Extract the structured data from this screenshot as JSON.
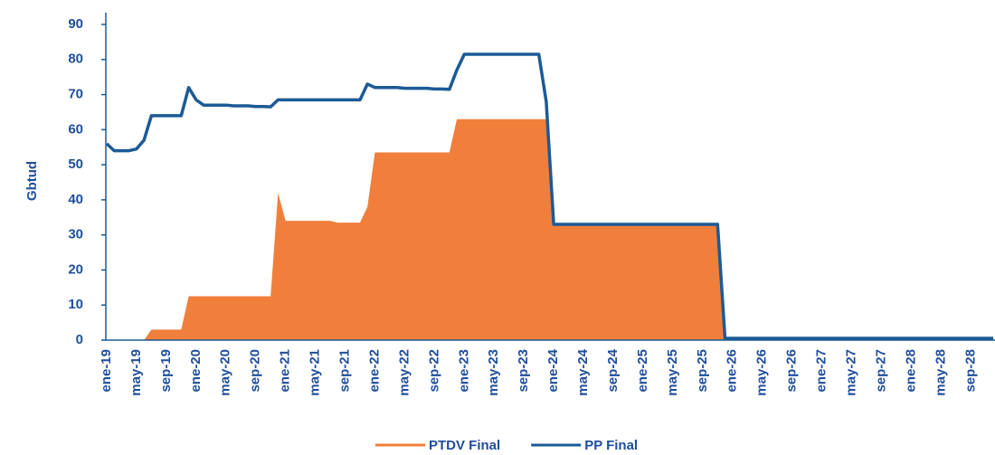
{
  "chart_data": {
    "type": "area-line",
    "y_label": "Gbtud",
    "categories": [
      "ene-19",
      null,
      null,
      null,
      "may-19",
      null,
      null,
      null,
      "sep-19",
      null,
      null,
      null,
      "ene-20",
      null,
      null,
      null,
      "may-20",
      null,
      null,
      null,
      "sep-20",
      null,
      null,
      null,
      "ene-21",
      null,
      null,
      null,
      "may-21",
      null,
      null,
      null,
      "sep-21",
      null,
      null,
      null,
      "ene-22",
      null,
      null,
      null,
      "may-22",
      null,
      null,
      null,
      "sep-22",
      null,
      null,
      null,
      "ene-23",
      null,
      null,
      null,
      "may-23",
      null,
      null,
      null,
      "sep-23",
      null,
      null,
      null,
      "ene-24",
      null,
      null,
      null,
      "may-24",
      null,
      null,
      null,
      "sep-24",
      null,
      null,
      null,
      "ene-25",
      null,
      null,
      null,
      "may-25",
      null,
      null,
      null,
      "sep-25",
      null,
      null,
      null,
      "ene-26",
      null,
      null,
      null,
      "may-26",
      null,
      null,
      null,
      "sep-26",
      null,
      null,
      null,
      "ene-27",
      null,
      null,
      null,
      "may-27",
      null,
      null,
      null,
      "sep-27",
      null,
      null,
      null,
      "ene-28",
      null,
      null,
      null,
      "may-28",
      null,
      null,
      null,
      "sep-28",
      null,
      null,
      null
    ],
    "series": [
      {
        "name": "PTDV Final",
        "color": "#f07f3c",
        "kind": "area",
        "values": [
          0,
          0,
          0,
          0,
          0,
          0,
          3,
          3,
          3,
          3,
          3,
          12.5,
          12.5,
          12.5,
          12.5,
          12.5,
          12.5,
          12.5,
          12.5,
          12.5,
          12.5,
          12.5,
          12.5,
          42,
          34,
          34,
          34,
          34,
          34,
          34,
          34,
          33.5,
          33.5,
          33.5,
          33.5,
          38,
          53.5,
          53.5,
          53.5,
          53.5,
          53.5,
          53.5,
          53.5,
          53.5,
          53.5,
          53.5,
          53.5,
          63,
          63,
          63,
          63,
          63,
          63,
          63,
          63,
          63,
          63,
          63,
          63,
          63,
          33,
          33,
          33,
          33,
          33,
          33,
          33,
          33,
          33,
          33,
          33,
          33,
          33,
          33,
          33,
          33,
          33,
          33,
          33,
          33,
          33,
          33,
          33,
          0,
          0,
          0,
          0,
          0,
          0,
          0,
          0,
          0,
          0,
          0,
          0,
          0,
          0,
          0,
          0,
          0,
          0,
          0,
          0,
          0,
          0,
          0,
          0,
          0,
          0,
          0,
          0,
          0,
          0,
          0,
          0,
          0,
          0,
          0,
          0,
          0
        ]
      },
      {
        "name": "PP Final",
        "color": "#1b5a96",
        "kind": "line",
        "values": [
          56,
          54,
          54,
          54,
          54.5,
          57,
          64,
          64,
          64,
          64,
          64,
          72,
          68.5,
          67,
          67,
          67,
          67,
          66.8,
          66.8,
          66.8,
          66.6,
          66.6,
          66.5,
          68.5,
          68.5,
          68.5,
          68.5,
          68.5,
          68.5,
          68.5,
          68.5,
          68.5,
          68.5,
          68.5,
          68.5,
          73,
          72,
          72,
          72,
          72,
          71.8,
          71.8,
          71.8,
          71.8,
          71.6,
          71.6,
          71.5,
          77,
          81.5,
          81.5,
          81.5,
          81.5,
          81.5,
          81.5,
          81.5,
          81.5,
          81.5,
          81.5,
          81.5,
          68,
          33,
          33,
          33,
          33,
          33,
          33,
          33,
          33,
          33,
          33,
          33,
          33,
          33,
          33,
          33,
          33,
          33,
          33,
          33,
          33,
          33,
          33,
          33,
          0.5,
          0.5,
          0.5,
          0.5,
          0.5,
          0.5,
          0.5,
          0.5,
          0.5,
          0.5,
          0.5,
          0.5,
          0.5,
          0.5,
          0.5,
          0.5,
          0.5,
          0.5,
          0.5,
          0.5,
          0.5,
          0.5,
          0.5,
          0.5,
          0.5,
          0.5,
          0.5,
          0.5,
          0.5,
          0.5,
          0.5,
          0.5,
          0.5,
          0.5,
          0.5,
          0.5,
          0.5
        ]
      }
    ],
    "ylim": [
      0,
      90
    ],
    "yticks": [
      0,
      10,
      20,
      30,
      40,
      50,
      60,
      70,
      80,
      90
    ],
    "legend": "bottom"
  }
}
